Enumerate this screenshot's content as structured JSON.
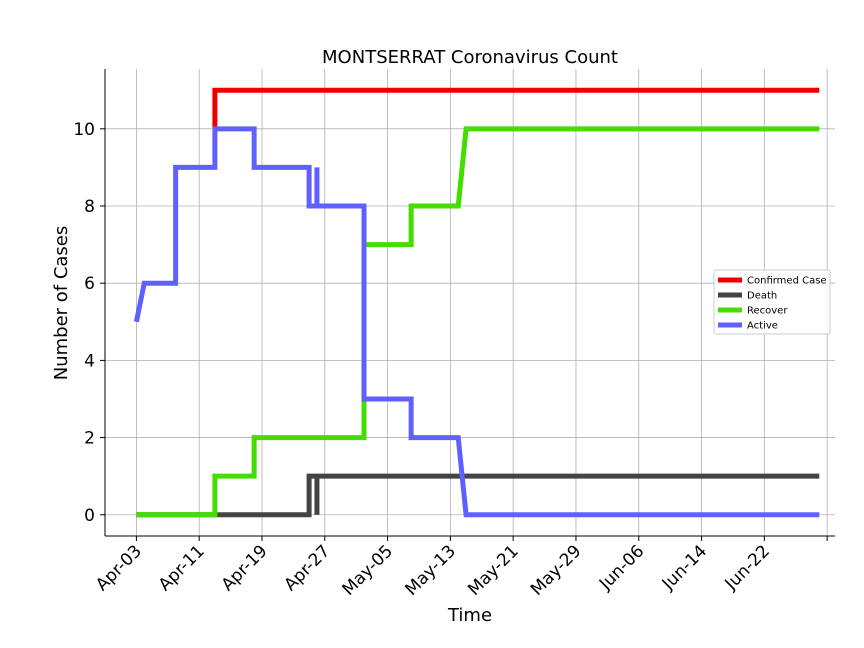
{
  "chart_data": {
    "type": "line",
    "title": "MONTSERRAT Coronavirus Count",
    "xlabel": "Time",
    "ylabel": "Number of Cases",
    "x_tick_labels": [
      "Apr-03",
      "Apr-11",
      "Apr-19",
      "Apr-27",
      "May-05",
      "May-13",
      "May-21",
      "May-29",
      "Jun-06",
      "Jun-14",
      "Jun-22"
    ],
    "x_tick_dates": [
      "2020-04-03",
      "2020-04-11",
      "2020-04-19",
      "2020-04-27",
      "2020-05-05",
      "2020-05-13",
      "2020-05-21",
      "2020-05-29",
      "2020-06-06",
      "2020-06-14",
      "2020-06-22"
    ],
    "y_ticks": [
      0,
      2,
      4,
      6,
      8,
      10
    ],
    "xlim": [
      "2020-03-30",
      "2020-07-01"
    ],
    "ylim": [
      -0.55,
      11.55
    ],
    "grid": true,
    "legend_position": "center-right",
    "series": [
      {
        "name": "Confirmed Case",
        "color": "#ee0000",
        "points": [
          [
            "2020-04-13",
            10
          ],
          [
            "2020-04-13",
            11
          ],
          [
            "2020-06-29",
            11
          ]
        ]
      },
      {
        "name": "Death",
        "color": "#444444",
        "points": [
          [
            "2020-04-03",
            0
          ],
          [
            "2020-04-25",
            0
          ],
          [
            "2020-04-25",
            1
          ],
          [
            "2020-04-26",
            1
          ],
          [
            "2020-04-26",
            0
          ],
          [
            "2020-04-26",
            1
          ],
          [
            "2020-06-29",
            1
          ]
        ]
      },
      {
        "name": "Recover",
        "color": "#44dd00",
        "points": [
          [
            "2020-04-03",
            0
          ],
          [
            "2020-04-13",
            0
          ],
          [
            "2020-04-13",
            1
          ],
          [
            "2020-04-18",
            1
          ],
          [
            "2020-04-18",
            2
          ],
          [
            "2020-05-02",
            2
          ],
          [
            "2020-05-02",
            7
          ],
          [
            "2020-05-08",
            7
          ],
          [
            "2020-05-08",
            8
          ],
          [
            "2020-05-14",
            8
          ],
          [
            "2020-05-15",
            10
          ],
          [
            "2020-06-29",
            10
          ]
        ]
      },
      {
        "name": "Active",
        "color": "#6060ff",
        "points": [
          [
            "2020-04-03",
            5
          ],
          [
            "2020-04-04",
            6
          ],
          [
            "2020-04-08",
            6
          ],
          [
            "2020-04-08",
            9
          ],
          [
            "2020-04-13",
            9
          ],
          [
            "2020-04-13",
            10
          ],
          [
            "2020-04-18",
            10
          ],
          [
            "2020-04-18",
            9
          ],
          [
            "2020-04-25",
            9
          ],
          [
            "2020-04-25",
            8
          ],
          [
            "2020-04-26",
            8
          ],
          [
            "2020-04-26",
            9
          ],
          [
            "2020-04-26",
            8
          ],
          [
            "2020-05-02",
            8
          ],
          [
            "2020-05-02",
            3
          ],
          [
            "2020-05-08",
            3
          ],
          [
            "2020-05-08",
            2
          ],
          [
            "2020-05-14",
            2
          ],
          [
            "2020-05-15",
            0
          ],
          [
            "2020-06-29",
            0
          ]
        ]
      }
    ]
  }
}
